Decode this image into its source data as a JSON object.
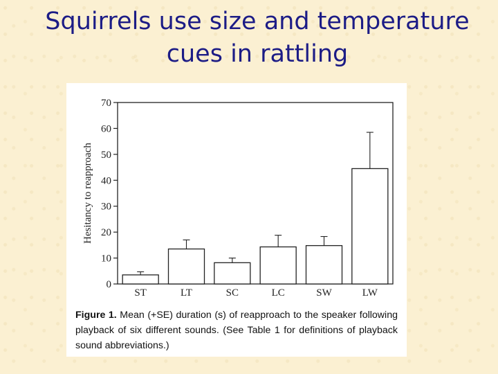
{
  "slide": {
    "title_line1": "Squirrels use size and temperature",
    "title_line2": "cues in rattling"
  },
  "figure": {
    "caption_label": "Figure 1.",
    "caption_text": "Mean (+SE) duration (s) of reapproach to the speaker following playback of six different sounds. (See Table 1 for definitions of playback sound abbreviations.)"
  },
  "chart_data": {
    "type": "bar",
    "categories": [
      "ST",
      "LT",
      "SC",
      "LC",
      "SW",
      "LW"
    ],
    "values": [
      3.5,
      13.5,
      8.2,
      14.3,
      14.8,
      44.5
    ],
    "errors": [
      1.2,
      3.5,
      1.8,
      4.5,
      3.5,
      14.0
    ],
    "error_type": "+SE",
    "ylabel": "Hesitancy to reapproach",
    "ylim": [
      0,
      70
    ],
    "yticks": [
      0,
      10,
      20,
      30,
      40,
      50,
      60,
      70
    ],
    "bar_color": "#ffffff",
    "grid": false,
    "legend": "none"
  }
}
